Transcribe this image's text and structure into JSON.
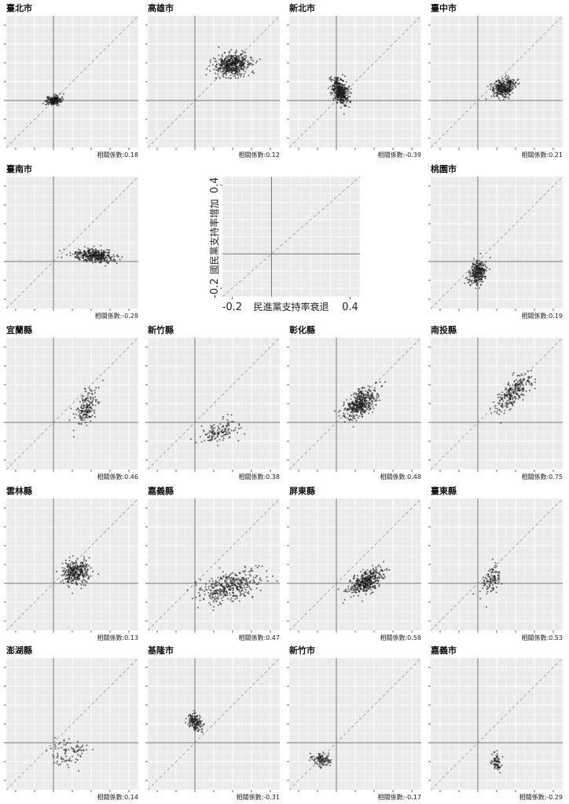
{
  "chart_data": {
    "type": "scatter",
    "corr_label": "相關係數",
    "reference_lines": {
      "diagonal": "y = x (dashed)",
      "x_zero": 0,
      "y_zero": 0
    },
    "legend_panel": {
      "xlabel": "民進黨支持率衰退",
      "ylabel": "國民黨支持率增加",
      "xticks": [
        -0.2,
        0.4
      ],
      "yticks": [
        -0.2,
        0.4
      ],
      "xlim": [
        -0.25,
        0.45
      ],
      "ylim": [
        -0.25,
        0.45
      ]
    },
    "panels": [
      {
        "name": "臺北市",
        "corr": "0.18",
        "dist": {
          "mx": 0.0,
          "my": 0.0,
          "sx": 0.02,
          "sy": 0.012,
          "n": 180,
          "r": 0.18
        }
      },
      {
        "name": "高雄市",
        "corr": "0.12",
        "dist": {
          "mx": 0.2,
          "my": 0.19,
          "sx": 0.045,
          "sy": 0.03,
          "n": 500,
          "r": 0.12
        }
      },
      {
        "name": "新北市",
        "corr": "-0.39",
        "dist": {
          "mx": 0.02,
          "my": 0.05,
          "sx": 0.022,
          "sy": 0.035,
          "n": 400,
          "r": -0.39
        }
      },
      {
        "name": "臺中市",
        "corr": "0.21",
        "dist": {
          "mx": 0.14,
          "my": 0.07,
          "sx": 0.03,
          "sy": 0.025,
          "n": 330,
          "r": 0.21
        }
      },
      {
        "name": "臺南市",
        "corr": "-0.28",
        "dist": {
          "mx": 0.22,
          "my": 0.03,
          "sx": 0.055,
          "sy": 0.018,
          "n": 370,
          "r": -0.28
        }
      },
      {
        "name": "桃園市",
        "corr": "0.19",
        "dist": {
          "mx": 0.0,
          "my": -0.06,
          "sx": 0.022,
          "sy": 0.03,
          "n": 280,
          "r": 0.19
        }
      },
      {
        "name": "宜蘭縣",
        "corr": "0.46",
        "dist": {
          "mx": 0.18,
          "my": 0.08,
          "sx": 0.03,
          "sy": 0.045,
          "n": 170,
          "r": 0.46
        }
      },
      {
        "name": "新竹縣",
        "corr": "0.38",
        "dist": {
          "mx": 0.13,
          "my": -0.05,
          "sx": 0.05,
          "sy": 0.03,
          "n": 130,
          "r": 0.38
        }
      },
      {
        "name": "彰化縣",
        "corr": "0.48",
        "dist": {
          "mx": 0.13,
          "my": 0.1,
          "sx": 0.04,
          "sy": 0.04,
          "n": 430,
          "r": 0.48
        }
      },
      {
        "name": "南投縣",
        "corr": "0.75",
        "dist": {
          "mx": 0.19,
          "my": 0.16,
          "sx": 0.05,
          "sy": 0.05,
          "n": 250,
          "r": 0.75
        }
      },
      {
        "name": "雲林縣",
        "corr": "0.13",
        "dist": {
          "mx": 0.12,
          "my": 0.06,
          "sx": 0.035,
          "sy": 0.03,
          "n": 320,
          "r": 0.13
        }
      },
      {
        "name": "嘉義縣",
        "corr": "0.47",
        "dist": {
          "mx": 0.18,
          "my": -0.02,
          "sx": 0.08,
          "sy": 0.045,
          "n": 380,
          "r": 0.47
        }
      },
      {
        "name": "屏東縣",
        "corr": "0.58",
        "dist": {
          "mx": 0.16,
          "my": 0.01,
          "sx": 0.045,
          "sy": 0.035,
          "n": 400,
          "r": 0.58
        }
      },
      {
        "name": "臺東縣",
        "corr": "0.53",
        "dist": {
          "mx": 0.07,
          "my": 0.02,
          "sx": 0.03,
          "sy": 0.04,
          "n": 110,
          "r": 0.53
        }
      },
      {
        "name": "澎湖縣",
        "corr": "0.14",
        "dist": {
          "mx": 0.08,
          "my": -0.05,
          "sx": 0.05,
          "sy": 0.035,
          "n": 90,
          "r": 0.14
        }
      },
      {
        "name": "基隆市",
        "corr": "-0.31",
        "dist": {
          "mx": 0.0,
          "my": 0.11,
          "sx": 0.02,
          "sy": 0.022,
          "n": 150,
          "r": -0.31
        }
      },
      {
        "name": "新竹市",
        "corr": "-0.17",
        "dist": {
          "mx": -0.08,
          "my": -0.09,
          "sx": 0.025,
          "sy": 0.018,
          "n": 110,
          "r": -0.17
        }
      },
      {
        "name": "嘉義市",
        "corr": "-0.29",
        "dist": {
          "mx": 0.1,
          "my": -0.1,
          "sx": 0.012,
          "sy": 0.022,
          "n": 70,
          "r": -0.29
        }
      }
    ]
  },
  "colors": {
    "panel_bg": "#ebebeb",
    "grid": "#ffffff",
    "point": "#1a1a1a",
    "zero_line": "#777777",
    "diagonal": "#a8a8a8"
  }
}
